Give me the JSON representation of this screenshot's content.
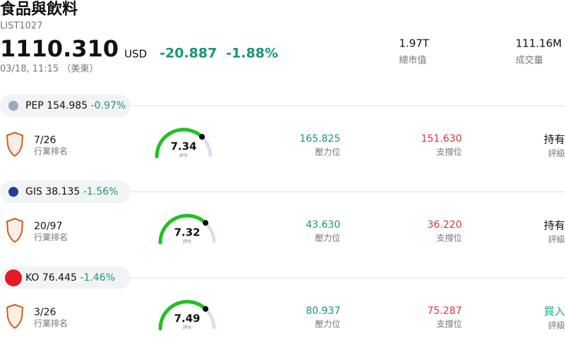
{
  "header": {
    "title": "食品與飲料",
    "code": "LIST1027",
    "price": "1110.310",
    "currency": "USD",
    "change": "-20.887",
    "change_pct": "-1.88%",
    "time": "03/18, 11:15 （美東）",
    "stats": [
      {
        "value": "1.97T",
        "label": "總市值"
      },
      {
        "value": "111.16M",
        "label": "成交量"
      }
    ]
  },
  "stocks": [
    {
      "ticker": "PEP",
      "price": "154.985",
      "change": "-0.97%",
      "rank": "7/26",
      "rank_label": "行業排名",
      "score": "7.34",
      "score_label": "評分",
      "resistance": "165.825",
      "resistance_label": "壓力位",
      "support": "151.630",
      "support_label": "支撐位",
      "rating": "持有",
      "rating_label": "評級"
    },
    {
      "ticker": "GIS",
      "price": "38.135",
      "change": "-1.56%",
      "rank": "20/97",
      "rank_label": "行業排名",
      "score": "7.32",
      "score_label": "評分",
      "resistance": "43.630",
      "resistance_label": "壓力位",
      "support": "36.220",
      "support_label": "支撐位",
      "rating": "持有",
      "rating_label": "評級"
    },
    {
      "ticker": "KO",
      "price": "76.445",
      "change": "-1.46%",
      "rank": "3/26",
      "rank_label": "行業排名",
      "score": "7.49",
      "score_label": "評分",
      "resistance": "80.937",
      "resistance_label": "壓力位",
      "support": "75.287",
      "support_label": "支撐位",
      "rating": "買入",
      "rating_label": "評級"
    }
  ]
}
